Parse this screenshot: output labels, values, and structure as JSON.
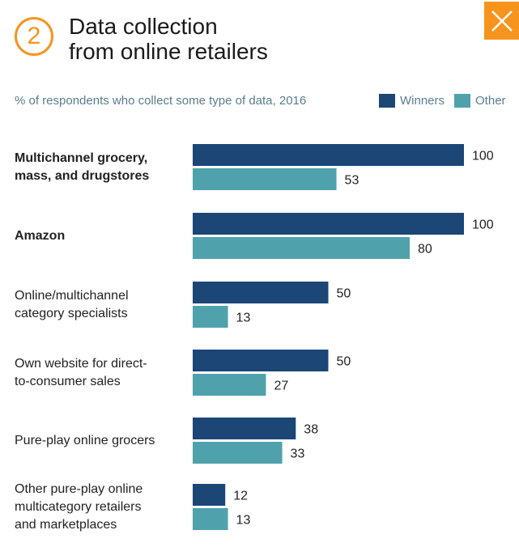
{
  "header": {
    "step_number": "2",
    "title_line1": "Data collection",
    "title_line2": "from online retailers"
  },
  "colors": {
    "accent": "#f7941d",
    "winners": "#1b4676",
    "other": "#4fa2ac"
  },
  "icons": {
    "close": "close-icon"
  },
  "chart_data": {
    "type": "bar",
    "orientation": "horizontal",
    "subtitle": "% of respondents who collect some type of data, 2016",
    "categories": [
      "Multichannel grocery,\nmass, and drugstores",
      "Amazon",
      "Online/multichannel\ncategory specialists",
      "Own website for direct-\nto-consumer sales",
      "Pure-play online grocers",
      "Other pure-play online\nmulticategory retailers\nand marketplaces"
    ],
    "bold_categories": [
      true,
      true,
      false,
      false,
      false,
      false
    ],
    "series": [
      {
        "name": "Winners",
        "values": [
          100,
          100,
          50,
          50,
          38,
          12
        ]
      },
      {
        "name": "Other",
        "values": [
          53,
          80,
          13,
          27,
          33,
          13
        ]
      }
    ],
    "xlim": [
      0,
      100
    ],
    "legend_position": "top-right",
    "grid": false
  }
}
